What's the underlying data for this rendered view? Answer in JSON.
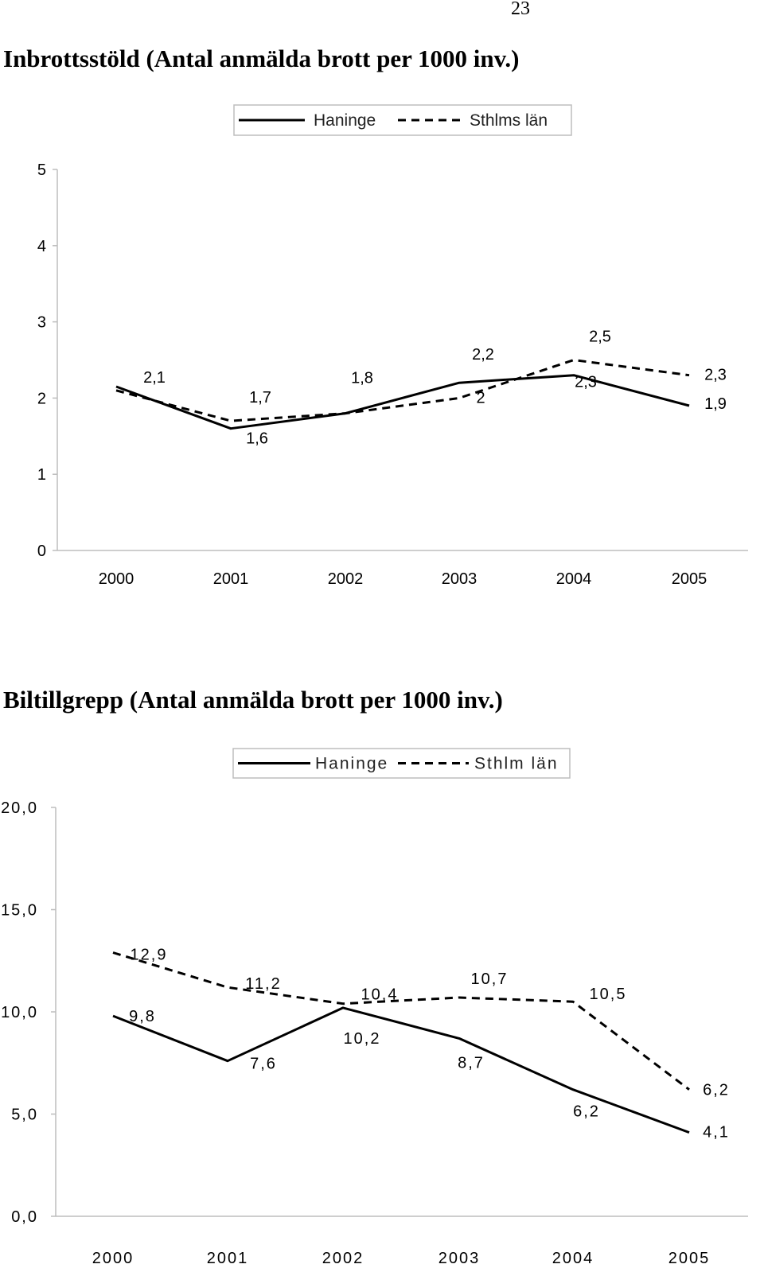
{
  "page_number": "23",
  "chart_data": [
    {
      "type": "line",
      "title": "Inbrottsstöld (Antal anmälda brott per 1000 inv.)",
      "categories": [
        "2000",
        "2001",
        "2002",
        "2003",
        "2004",
        "2005"
      ],
      "ylim": [
        0,
        5
      ],
      "yticks": [
        "0",
        "1",
        "2",
        "3",
        "4",
        "5"
      ],
      "legend_position": "top-right",
      "grid": false,
      "series": [
        {
          "name": "Haninge",
          "style": "solid",
          "color": "#000000",
          "values": [
            2.15,
            1.6,
            1.8,
            2.2,
            2.3,
            1.9
          ],
          "labels": [
            "2,1",
            "1,6",
            "1,8",
            "2,2",
            "2,3",
            "1,9"
          ]
        },
        {
          "name": "Sthlms län",
          "style": "dashed",
          "color": "#000000",
          "values": [
            2.1,
            1.7,
            1.8,
            2.0,
            2.5,
            2.3
          ],
          "labels": [
            "",
            "1,7",
            "",
            "2",
            "2,5",
            "2,3"
          ]
        }
      ]
    },
    {
      "type": "line",
      "title": "Biltillgrepp (Antal anmälda brott per 1000 inv.)",
      "categories": [
        "2000",
        "2001",
        "2002",
        "2003",
        "2004",
        "2005"
      ],
      "ylim": [
        0,
        20
      ],
      "yticks": [
        "0,0",
        "5,0",
        "10,0",
        "15,0",
        "20,0"
      ],
      "legend_position": "top-right",
      "grid": false,
      "series": [
        {
          "name": "Haninge",
          "style": "solid",
          "color": "#000000",
          "values": [
            9.8,
            7.6,
            10.2,
            8.7,
            6.2,
            4.1
          ],
          "labels": [
            "9,8",
            "7,6",
            "10,2",
            "8,7",
            "6,2",
            "4,1"
          ]
        },
        {
          "name": "Sthlm län",
          "style": "dashed",
          "color": "#000000",
          "values": [
            12.9,
            11.2,
            10.4,
            10.7,
            10.5,
            6.2
          ],
          "labels": [
            "12,9",
            "11,2",
            "10,4",
            "10,7",
            "10,5",
            "6,2"
          ]
        }
      ]
    }
  ]
}
